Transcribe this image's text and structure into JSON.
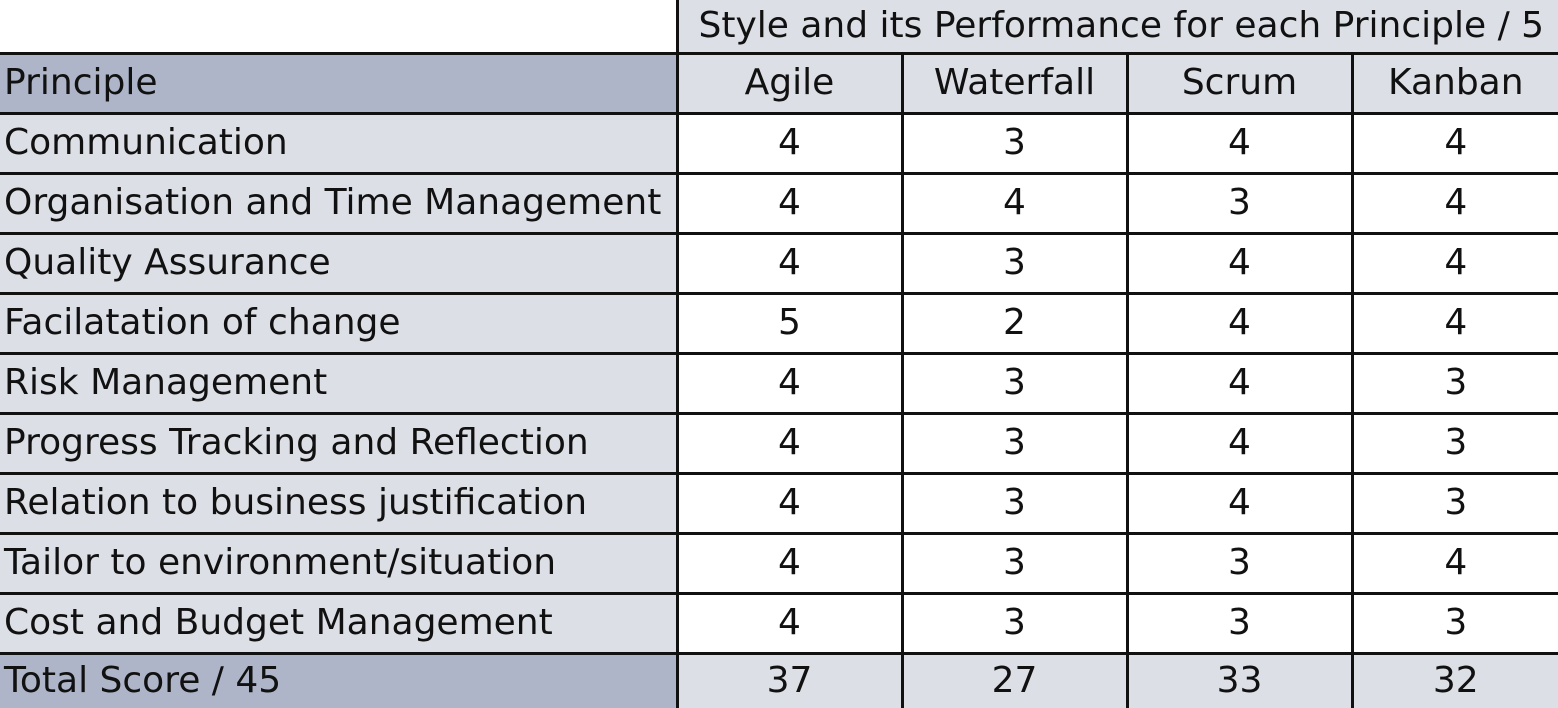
{
  "table": {
    "group_title": "Style and its Performance for each Principle / 5",
    "principle_header": "Principle",
    "styles": [
      "Agile",
      "Waterfall",
      "Scrum",
      "Kanban"
    ],
    "rows": [
      {
        "principle": "Communication",
        "scores": [
          "4",
          "3",
          "4",
          "4"
        ]
      },
      {
        "principle": "Organisation and Time Management",
        "scores": [
          "4",
          "4",
          "3",
          "4"
        ]
      },
      {
        "principle": "Quality Assurance",
        "scores": [
          "4",
          "3",
          "4",
          "4"
        ]
      },
      {
        "principle": "Facilatation of change",
        "scores": [
          "5",
          "2",
          "4",
          "4"
        ]
      },
      {
        "principle": "Risk Management",
        "scores": [
          "4",
          "3",
          "4",
          "3"
        ]
      },
      {
        "principle": "Progress Tracking and Reflection",
        "scores": [
          "4",
          "3",
          "4",
          "3"
        ]
      },
      {
        "principle": "Relation to business justification",
        "scores": [
          "4",
          "3",
          "4",
          "3"
        ]
      },
      {
        "principle": "Tailor to environment/situation",
        "scores": [
          "4",
          "3",
          "3",
          "4"
        ]
      },
      {
        "principle": "Cost and Budget Management",
        "scores": [
          "4",
          "3",
          "3",
          "3"
        ]
      }
    ],
    "total": {
      "label": "Total Score / 45",
      "scores": [
        "37",
        "27",
        "33",
        "32"
      ]
    },
    "colors": {
      "header_dark": "#aeb5c8",
      "header_light": "#dcdfe6",
      "cell": "#ffffff",
      "border": "#111111"
    }
  }
}
